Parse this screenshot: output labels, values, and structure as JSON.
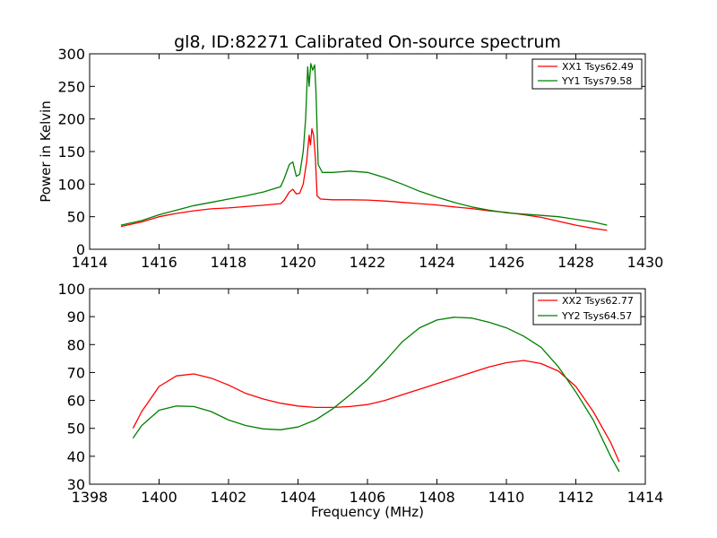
{
  "figure": {
    "background": "#ffffff"
  },
  "chart_data": [
    {
      "type": "line",
      "title": "gl8, ID:82271 Calibrated On-source spectrum",
      "xlabel": "",
      "ylabel": "Power in Kelvin",
      "xlim": [
        1414,
        1430
      ],
      "ylim": [
        0,
        300
      ],
      "xticks": [
        1414,
        1416,
        1418,
        1420,
        1422,
        1424,
        1426,
        1428,
        1430
      ],
      "yticks": [
        0,
        50,
        100,
        150,
        200,
        250,
        300
      ],
      "grid": false,
      "legend_position": "top-right",
      "series": [
        {
          "name": "XX1 Tsys62.49",
          "color": "#ff0000",
          "points": [
            [
              1414.9,
              35
            ],
            [
              1415.5,
              42
            ],
            [
              1416,
              50
            ],
            [
              1416.5,
              55
            ],
            [
              1417,
              59
            ],
            [
              1417.5,
              62
            ],
            [
              1418,
              63.5
            ],
            [
              1418.5,
              65.5
            ],
            [
              1419,
              67.5
            ],
            [
              1419.5,
              70
            ],
            [
              1419.6,
              75
            ],
            [
              1419.75,
              88
            ],
            [
              1419.85,
              92
            ],
            [
              1419.95,
              85
            ],
            [
              1420.05,
              86
            ],
            [
              1420.15,
              100
            ],
            [
              1420.25,
              135
            ],
            [
              1420.32,
              175
            ],
            [
              1420.36,
              160
            ],
            [
              1420.4,
              185
            ],
            [
              1420.45,
              175
            ],
            [
              1420.5,
              140
            ],
            [
              1420.55,
              82
            ],
            [
              1420.65,
              77
            ],
            [
              1421,
              76
            ],
            [
              1421.5,
              76
            ],
            [
              1422,
              75.5
            ],
            [
              1422.5,
              74
            ],
            [
              1423,
              72
            ],
            [
              1423.5,
              70
            ],
            [
              1424,
              68
            ],
            [
              1424.5,
              65
            ],
            [
              1425,
              62.5
            ],
            [
              1425.5,
              59
            ],
            [
              1426,
              56.5
            ],
            [
              1426.5,
              53
            ],
            [
              1427,
              49
            ],
            [
              1427.5,
              43
            ],
            [
              1428,
              37
            ],
            [
              1428.5,
              32
            ],
            [
              1428.9,
              29
            ]
          ]
        },
        {
          "name": "YY1 Tsys79.58",
          "color": "#008000",
          "points": [
            [
              1414.9,
              37
            ],
            [
              1415.5,
              44
            ],
            [
              1416,
              53
            ],
            [
              1416.5,
              60
            ],
            [
              1417,
              67
            ],
            [
              1417.5,
              72
            ],
            [
              1418,
              77
            ],
            [
              1418.5,
              82
            ],
            [
              1419,
              88
            ],
            [
              1419.5,
              96
            ],
            [
              1419.6,
              108
            ],
            [
              1419.75,
              130
            ],
            [
              1419.85,
              134
            ],
            [
              1419.95,
              112
            ],
            [
              1420.05,
              115
            ],
            [
              1420.15,
              150
            ],
            [
              1420.22,
              200
            ],
            [
              1420.28,
              280
            ],
            [
              1420.32,
              250
            ],
            [
              1420.37,
              285
            ],
            [
              1420.42,
              275
            ],
            [
              1420.48,
              283
            ],
            [
              1420.52,
              240
            ],
            [
              1420.58,
              130
            ],
            [
              1420.7,
              118
            ],
            [
              1421,
              118
            ],
            [
              1421.5,
              120
            ],
            [
              1422,
              118
            ],
            [
              1422.5,
              110
            ],
            [
              1423,
              100
            ],
            [
              1423.5,
              89
            ],
            [
              1424,
              80
            ],
            [
              1424.5,
              72
            ],
            [
              1425,
              65
            ],
            [
              1425.5,
              60
            ],
            [
              1426,
              56
            ],
            [
              1426.5,
              54
            ],
            [
              1427,
              52
            ],
            [
              1427.5,
              50
            ],
            [
              1428,
              46
            ],
            [
              1428.5,
              42
            ],
            [
              1428.9,
              37
            ]
          ]
        }
      ]
    },
    {
      "type": "line",
      "title": "",
      "xlabel": "Frequency (MHz)",
      "ylabel": "",
      "xlim": [
        1398,
        1414
      ],
      "ylim": [
        30,
        100
      ],
      "xticks": [
        1398,
        1400,
        1402,
        1404,
        1406,
        1408,
        1410,
        1412,
        1414
      ],
      "yticks": [
        30,
        40,
        50,
        60,
        70,
        80,
        90,
        100
      ],
      "grid": false,
      "legend_position": "top-right",
      "series": [
        {
          "name": "XX2 Tsys62.77",
          "color": "#ff0000",
          "points": [
            [
              1399.25,
              50
            ],
            [
              1399.5,
              56
            ],
            [
              1400,
              65
            ],
            [
              1400.5,
              68.8
            ],
            [
              1401,
              69.5
            ],
            [
              1401.5,
              68
            ],
            [
              1402,
              65.5
            ],
            [
              1402.5,
              62.5
            ],
            [
              1403,
              60.5
            ],
            [
              1403.5,
              59
            ],
            [
              1404,
              58
            ],
            [
              1404.5,
              57.5
            ],
            [
              1405,
              57.5
            ],
            [
              1405.5,
              57.8
            ],
            [
              1406,
              58.5
            ],
            [
              1406.5,
              60
            ],
            [
              1407,
              62
            ],
            [
              1407.5,
              64
            ],
            [
              1408,
              66
            ],
            [
              1408.5,
              68
            ],
            [
              1409,
              70
            ],
            [
              1409.5,
              72
            ],
            [
              1410,
              73.5
            ],
            [
              1410.5,
              74.3
            ],
            [
              1411,
              73.2
            ],
            [
              1411.5,
              70.5
            ],
            [
              1412,
              65
            ],
            [
              1412.5,
              56
            ],
            [
              1413,
              45
            ],
            [
              1413.25,
              38
            ]
          ]
        },
        {
          "name": "YY2 Tsys64.57",
          "color": "#008000",
          "points": [
            [
              1399.25,
              46.5
            ],
            [
              1399.5,
              51
            ],
            [
              1400,
              56.5
            ],
            [
              1400.5,
              58
            ],
            [
              1401,
              57.8
            ],
            [
              1401.5,
              56
            ],
            [
              1402,
              53
            ],
            [
              1402.5,
              51
            ],
            [
              1403,
              49.8
            ],
            [
              1403.5,
              49.5
            ],
            [
              1404,
              50.5
            ],
            [
              1404.5,
              53
            ],
            [
              1405,
              57
            ],
            [
              1405.5,
              62
            ],
            [
              1406,
              67.5
            ],
            [
              1406.5,
              74
            ],
            [
              1407,
              81
            ],
            [
              1407.5,
              86
            ],
            [
              1408,
              88.8
            ],
            [
              1408.5,
              89.8
            ],
            [
              1409,
              89.5
            ],
            [
              1409.5,
              88
            ],
            [
              1410,
              86
            ],
            [
              1410.5,
              83
            ],
            [
              1411,
              79
            ],
            [
              1411.5,
              72
            ],
            [
              1412,
              63
            ],
            [
              1412.5,
              53
            ],
            [
              1413,
              40
            ],
            [
              1413.25,
              34.5
            ]
          ]
        }
      ]
    }
  ]
}
